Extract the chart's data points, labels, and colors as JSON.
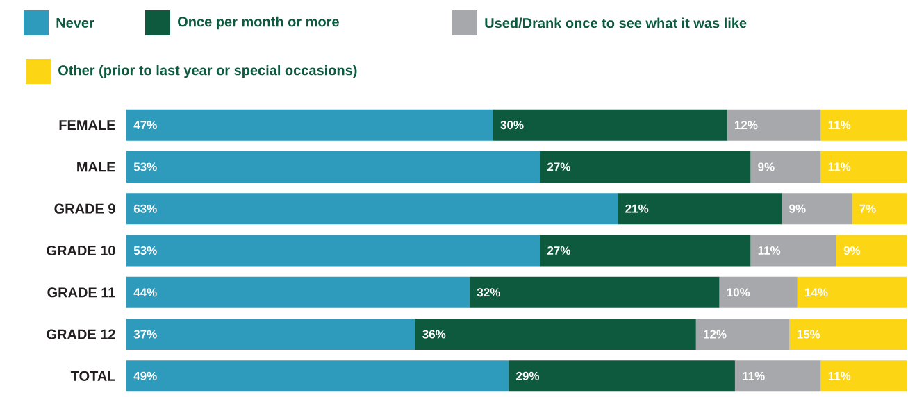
{
  "chart_data": {
    "type": "bar",
    "orientation": "horizontal",
    "stacked": true,
    "legend": "top",
    "tick_labels": "y",
    "xlim": [
      0,
      100
    ],
    "categories": [
      "FEMALE",
      "MALE",
      "GRADE 9",
      "GRADE 10",
      "GRADE 11",
      "GRADE 12",
      "TOTAL"
    ],
    "series": [
      {
        "name": "Never",
        "color": "#2e9bbd",
        "values": [
          47,
          53,
          63,
          53,
          44,
          37,
          49
        ],
        "value_labels": [
          "47%",
          "53%",
          "63%",
          "53%",
          "44%",
          "37%",
          "49%"
        ]
      },
      {
        "name": "Once per month or more",
        "color": "#0d5a3f",
        "values": [
          30,
          27,
          21,
          27,
          32,
          36,
          29
        ],
        "value_labels": [
          "30%",
          "27%",
          "21%",
          "27%",
          "32%",
          "36%",
          "29%"
        ]
      },
      {
        "name": "Used/Drank once to see what it was like",
        "color": "#a7a8ab",
        "values": [
          12,
          9,
          9,
          11,
          10,
          12,
          11
        ],
        "value_labels": [
          "12%",
          "9%",
          "9%",
          "11%",
          "10%",
          "12%",
          "11%"
        ]
      },
      {
        "name": "Other (prior to last year or special occasions)",
        "color": "#fcd615",
        "values": [
          11,
          11,
          7,
          9,
          14,
          15,
          11
        ],
        "value_labels": [
          "11%",
          "11%",
          "7%",
          "9%",
          "14%",
          "15%",
          "11%"
        ]
      }
    ]
  }
}
